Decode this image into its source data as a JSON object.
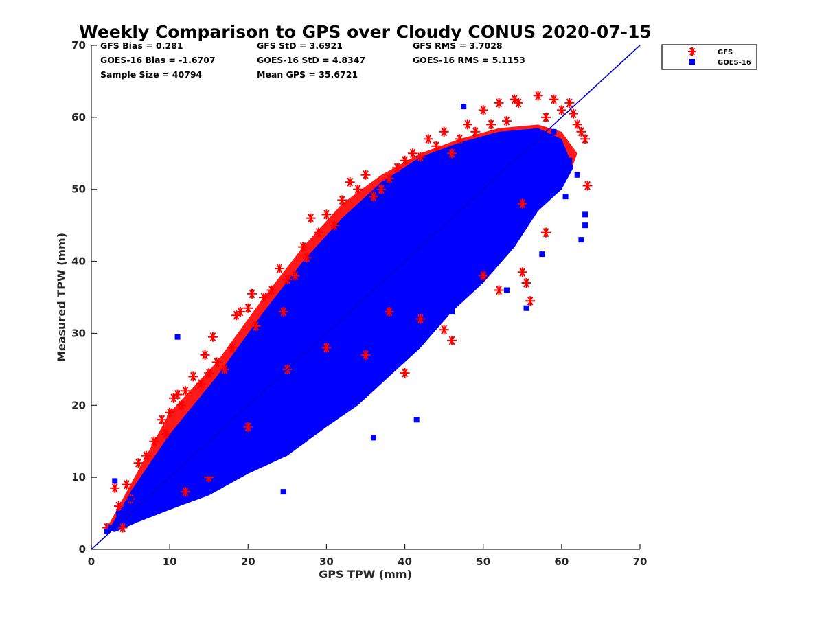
{
  "chart_data": {
    "type": "scatter",
    "title": "Weekly Comparison to GPS over Cloudy CONUS 2020-07-15",
    "xlabel": "GPS TPW (mm)",
    "ylabel": "Measured TPW (mm)",
    "xlim": [
      0,
      70
    ],
    "ylim": [
      0,
      70
    ],
    "xticks": [
      "0",
      "10",
      "20",
      "30",
      "40",
      "50",
      "60",
      "70"
    ],
    "yticks": [
      "0",
      "10",
      "20",
      "30",
      "40",
      "50",
      "60",
      "70"
    ],
    "grid": false,
    "legend_position": "outside top-right",
    "reference_line": {
      "x": [
        0,
        70
      ],
      "y": [
        0,
        70
      ],
      "color": "#0000cc"
    },
    "stats": [
      {
        "label": "GFS Bias = 0.281"
      },
      {
        "label": "GFS StD = 3.6921"
      },
      {
        "label": "GFS RMS = 3.7028"
      },
      {
        "label": "GOES-16 Bias = -1.6707"
      },
      {
        "label": "GOES-16 StD = 4.8347"
      },
      {
        "label": "GOES-16 RMS = 5.1153"
      },
      {
        "label": "Sample Size = 40794"
      },
      {
        "label": "Mean GPS = 35.6721"
      }
    ],
    "series": [
      {
        "name": "GFS",
        "marker": "asterisk",
        "color": "#ff0000",
        "x": [
          2,
          3,
          3.5,
          4,
          4.5,
          5,
          6,
          7,
          8,
          9,
          9.5,
          10,
          10.5,
          11,
          11.5,
          12,
          13,
          14,
          14.5,
          15,
          15.5,
          16,
          17,
          18,
          18.5,
          19,
          20,
          20.5,
          21,
          22,
          23,
          24,
          24.5,
          25,
          26,
          27,
          27.5,
          28,
          29,
          30,
          31,
          32,
          33,
          34,
          35,
          36,
          37,
          38,
          39,
          40,
          41,
          42,
          43,
          44,
          45,
          46,
          47,
          48,
          49,
          50,
          51,
          52,
          53,
          54,
          54.5,
          55,
          55.5,
          56,
          57,
          58,
          59,
          60,
          61,
          61.5,
          62,
          62.5,
          63,
          63.3,
          12,
          15,
          20,
          25,
          30,
          35,
          40,
          45,
          50,
          55,
          38,
          42,
          46,
          52,
          58
        ],
        "y": [
          3,
          8.5,
          6,
          3,
          9,
          7,
          12,
          13,
          15,
          18,
          16,
          19,
          21,
          21.5,
          20,
          22,
          24,
          23,
          27,
          24.5,
          29.5,
          26,
          25,
          28,
          32.5,
          33,
          33.5,
          35.5,
          31,
          35,
          36,
          39,
          33,
          37.5,
          38,
          42,
          40.5,
          46,
          44,
          46.5,
          45,
          48.5,
          51,
          50,
          52,
          49,
          50,
          51.5,
          53,
          54,
          55,
          54.5,
          57,
          56,
          58,
          55,
          57,
          59,
          58,
          61,
          59,
          62,
          59.5,
          62.5,
          62,
          38.5,
          37,
          34.5,
          63,
          60,
          62.5,
          61,
          62,
          60.5,
          59,
          58,
          57,
          50.5,
          8,
          10,
          17,
          25,
          28,
          27,
          24.5,
          30.5,
          38,
          48,
          33,
          32,
          29,
          36,
          44
        ]
      },
      {
        "name": "GOES-16",
        "marker": "square",
        "color": "#0000ff",
        "x": [
          2,
          2.5,
          3,
          3.5,
          4,
          5,
          6,
          7,
          8,
          9,
          10,
          11,
          12,
          13,
          14,
          15,
          16,
          17,
          18,
          19,
          20,
          21,
          22,
          23,
          24,
          25,
          26,
          27,
          28,
          29,
          30,
          31,
          32,
          33,
          34,
          35,
          36,
          37,
          38,
          39,
          40,
          41,
          42,
          43,
          44,
          45,
          46,
          47,
          48,
          49,
          50,
          51,
          52,
          53,
          54,
          55,
          56,
          57,
          58,
          59,
          60,
          61,
          62,
          63,
          41.5,
          36,
          28,
          24.5,
          11,
          15,
          47.5,
          55.5,
          57.5,
          60.5,
          62.5,
          63,
          50,
          53,
          46,
          39
        ],
        "y": [
          2.5,
          3,
          9.5,
          5,
          4,
          7,
          6,
          9,
          12,
          8,
          10,
          12,
          14,
          13,
          16,
          17,
          17.5,
          20,
          21,
          22,
          23,
          24,
          25,
          26,
          27,
          28,
          29,
          30,
          31,
          32,
          33,
          33.5,
          34,
          35,
          36,
          37,
          38,
          39,
          40,
          41,
          42,
          43,
          44,
          45,
          46,
          47,
          48,
          49,
          50,
          51,
          52,
          53,
          54,
          55,
          56,
          57,
          56,
          57,
          56,
          58,
          55,
          54,
          52,
          46.5,
          18,
          15.5,
          19,
          8,
          29.5,
          10.5,
          61.5,
          33.5,
          41,
          49,
          43,
          45,
          40,
          36,
          33,
          26
        ]
      }
    ]
  }
}
